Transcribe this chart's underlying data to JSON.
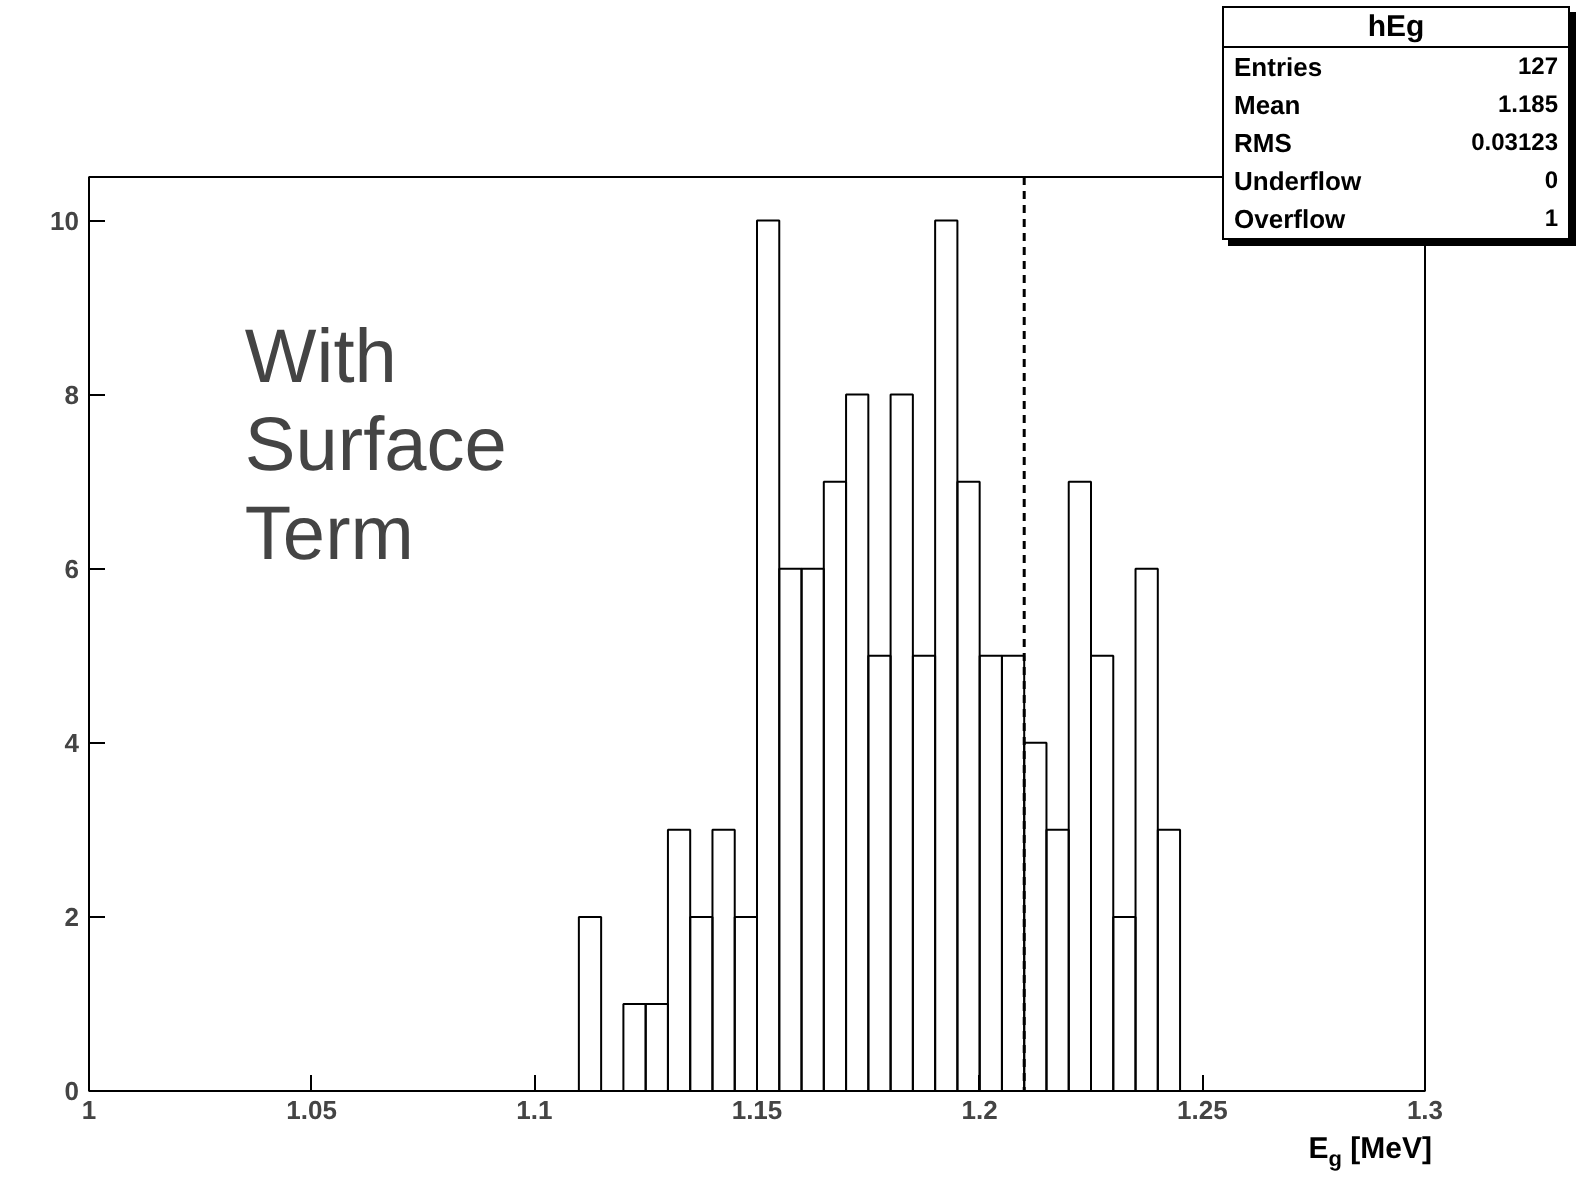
{
  "chart_data": {
    "type": "histogram",
    "title": "hEg",
    "xlabel": "E$_{g}$ [MeV]",
    "bins": [
      1.0,
      1.005,
      1.01,
      1.015,
      1.02,
      1.025,
      1.03,
      1.035,
      1.04,
      1.045,
      1.05,
      1.055,
      1.06,
      1.065,
      1.07,
      1.075,
      1.08,
      1.085,
      1.09,
      1.095,
      1.1,
      1.105,
      1.11,
      1.115,
      1.12,
      1.125,
      1.13,
      1.135,
      1.14,
      1.145,
      1.15,
      1.155,
      1.16,
      1.165,
      1.17,
      1.175,
      1.18,
      1.185,
      1.19,
      1.195,
      1.2,
      1.205,
      1.21,
      1.215,
      1.22,
      1.225,
      1.23,
      1.235,
      1.24,
      1.245,
      1.25,
      1.255,
      1.26,
      1.265,
      1.27,
      1.275,
      1.28,
      1.285,
      1.29,
      1.295,
      1.3
    ],
    "values": [
      0,
      0,
      0,
      0,
      0,
      0,
      0,
      0,
      0,
      0,
      0,
      0,
      0,
      0,
      0,
      0,
      0,
      0,
      0,
      0,
      0,
      0,
      2,
      0,
      1,
      1,
      3,
      2,
      3,
      2,
      10,
      6,
      6,
      7,
      8,
      5,
      8,
      5,
      10,
      7,
      5,
      5,
      4,
      3,
      7,
      5,
      2,
      6,
      3,
      0,
      0,
      0,
      0,
      0,
      0,
      0,
      0,
      0,
      0,
      0
    ],
    "color": "#000000",
    "xlim": [
      1.0,
      1.3
    ],
    "xticks": [
      1,
      1.05,
      1.1,
      1.15,
      1.2,
      1.25,
      1.3
    ],
    "ylim": [
      0,
      10.5
    ],
    "yticks": [
      0,
      2,
      4,
      6,
      8,
      10
    ],
    "grid": false,
    "ref_lines": [
      {
        "axis": "x",
        "value": 1.21,
        "line_style": "dashed",
        "color": "#000000"
      }
    ],
    "annotations": [
      "With\nSurface\nTerm",
      "Entries 127",
      "Mean 1.185",
      "RMS 0.03123",
      "Underflow 0",
      "Overflow 1"
    ]
  }
}
